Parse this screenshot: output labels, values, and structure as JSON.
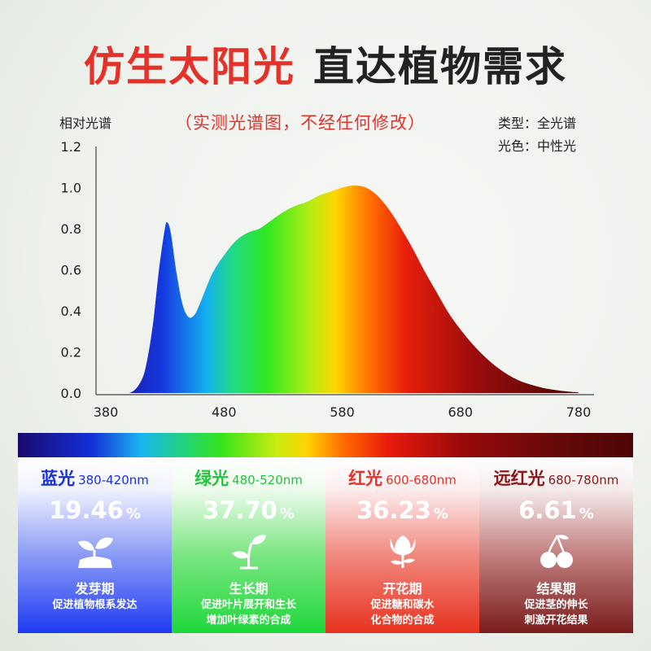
{
  "headline": {
    "red": "仿生太阳光",
    "dark": "直达植物需求"
  },
  "subtitle": "（实测光谱图，不经任何修改）",
  "info": {
    "type_line": "类型：全光谱",
    "color_line": "光色：中性光"
  },
  "chart_data": {
    "type": "area",
    "title": "",
    "xlabel": "",
    "ylabel": "相对光谱",
    "xlim": [
      380,
      780
    ],
    "ylim": [
      0,
      1.2
    ],
    "xticks": [
      380,
      480,
      580,
      680,
      780
    ],
    "yticks": [
      "0.0",
      "0.2",
      "0.4",
      "0.6",
      "0.8",
      "1.0",
      "1.2"
    ],
    "fill": "visible-spectrum gradient",
    "x": [
      380,
      400,
      410,
      415,
      420,
      425,
      430,
      432,
      435,
      440,
      445,
      450,
      455,
      460,
      470,
      480,
      490,
      500,
      510,
      520,
      530,
      540,
      550,
      560,
      570,
      580,
      590,
      600,
      610,
      620,
      630,
      640,
      650,
      660,
      670,
      680,
      690,
      700,
      710,
      720,
      730,
      740,
      750,
      760,
      770,
      780
    ],
    "y": [
      0.0,
      0.0,
      0.06,
      0.16,
      0.34,
      0.6,
      0.8,
      0.83,
      0.78,
      0.58,
      0.43,
      0.37,
      0.38,
      0.44,
      0.58,
      0.67,
      0.74,
      0.78,
      0.8,
      0.84,
      0.88,
      0.91,
      0.93,
      0.96,
      0.98,
      1.0,
      1.01,
      1.0,
      0.96,
      0.89,
      0.8,
      0.7,
      0.59,
      0.49,
      0.39,
      0.31,
      0.24,
      0.18,
      0.13,
      0.09,
      0.06,
      0.04,
      0.025,
      0.015,
      0.008,
      0.003
    ]
  },
  "color_bar": {
    "gradient": [
      "#1a0a6e",
      "#1430d8",
      "#19b5f0",
      "#34e41a",
      "#ffd400",
      "#ea1c0c",
      "#650909"
    ]
  },
  "bands": [
    {
      "name": "蓝光",
      "range": "380-420nm",
      "percent": "19.46",
      "unit": "%",
      "icon": "sprout-icon",
      "stage": "发芽期",
      "desc1": "促进植物根系发达",
      "desc2": "",
      "accent": "#1830d8"
    },
    {
      "name": "绿光",
      "range": "480-520nm",
      "percent": "37.70",
      "unit": "%",
      "icon": "seedling-icon",
      "stage": "生长期",
      "desc1": "促进叶片展开和生长",
      "desc2": "增加叶绿素的合成",
      "accent": "#22c43c"
    },
    {
      "name": "红光",
      "range": "600-680nm",
      "percent": "36.23",
      "unit": "%",
      "icon": "flower-icon",
      "stage": "开花期",
      "desc1": "促进糖和碳水",
      "desc2": "化合物的合成",
      "accent": "#e4322b"
    },
    {
      "name": "远红光",
      "range": "680-780nm",
      "percent": "6.61",
      "unit": "%",
      "icon": "cherry-icon",
      "stage": "结果期",
      "desc1": "促进茎的伸长",
      "desc2": "刺激开花结果",
      "accent": "#8a1616"
    }
  ]
}
